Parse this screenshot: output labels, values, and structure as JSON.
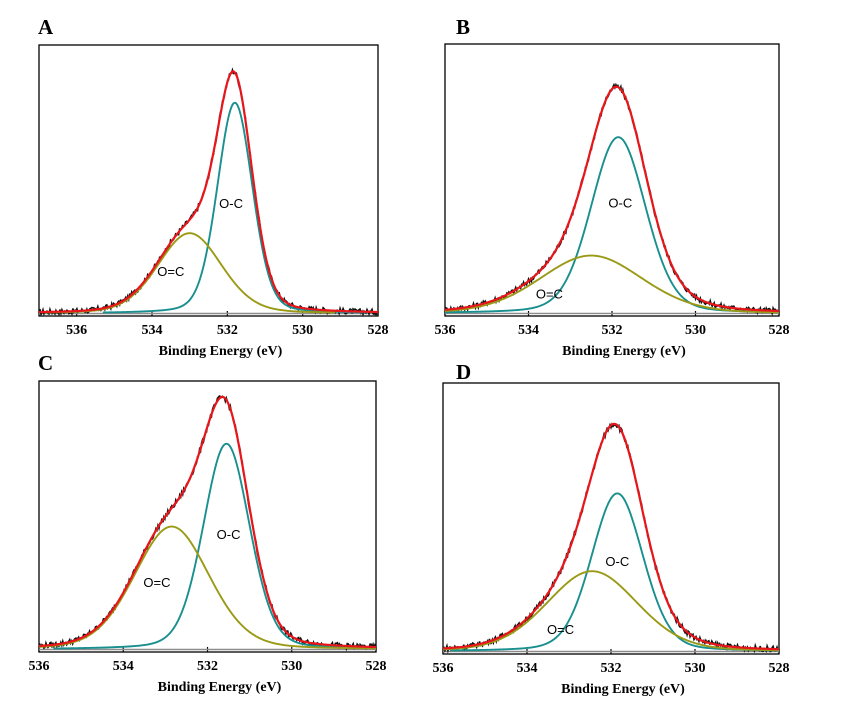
{
  "colors": {
    "raw": "#111111",
    "envelope": "#e8161b",
    "o_c": "#1a8f8f",
    "o_eq_c": "#9a9a16",
    "baseline": "#8c8c8c"
  },
  "chart_data": [
    {
      "panel": "A",
      "type": "line",
      "xlabel": "Binding Energy (eV)",
      "ylabel": "",
      "xlim": [
        537,
        528
      ],
      "x_reversed": true,
      "x_ticks": [
        536,
        534,
        532,
        530,
        528
      ],
      "y_axis_visible": false,
      "ylim": [
        0,
        1.08
      ],
      "baseline_level": 0.01,
      "components": [
        {
          "label": "O-C",
          "center": 531.8,
          "fwhm": 1.1,
          "height": 0.84,
          "color_key": "o_c"
        },
        {
          "label": "O=C",
          "center": 533.0,
          "fwhm": 2.0,
          "height": 0.32,
          "color_key": "o_eq_c"
        }
      ],
      "annotations": [
        {
          "text": "O-C",
          "x": 531.9,
          "y": 0.43
        },
        {
          "text": "O=C",
          "x": 533.5,
          "y": 0.16
        }
      ]
    },
    {
      "panel": "B",
      "type": "line",
      "xlabel": "Binding Energy (eV)",
      "ylabel": "",
      "xlim": [
        536,
        528
      ],
      "x_reversed": true,
      "x_ticks": [
        536,
        534,
        532,
        530,
        528
      ],
      "y_axis_visible": false,
      "ylim": [
        0,
        1.08
      ],
      "baseline_level": 0.01,
      "components": [
        {
          "label": "O-C",
          "center": 531.85,
          "fwhm": 1.55,
          "height": 0.7,
          "color_key": "o_c"
        },
        {
          "label": "O=C",
          "center": 532.5,
          "fwhm": 2.9,
          "height": 0.23,
          "color_key": "o_eq_c"
        }
      ],
      "annotations": [
        {
          "text": "O-C",
          "x": 531.8,
          "y": 0.43
        },
        {
          "text": "O=C",
          "x": 533.5,
          "y": 0.07
        }
      ]
    },
    {
      "panel": "C",
      "type": "line",
      "xlabel": "Binding Energy (eV)",
      "ylabel": "",
      "xlim": [
        536,
        528
      ],
      "x_reversed": true,
      "x_ticks": [
        536,
        534,
        532,
        530,
        528
      ],
      "y_axis_visible": false,
      "ylim": [
        0,
        1.08
      ],
      "baseline_level": 0.01,
      "components": [
        {
          "label": "O-C",
          "center": 531.55,
          "fwhm": 1.3,
          "height": 0.82,
          "color_key": "o_c"
        },
        {
          "label": "O=C",
          "center": 532.85,
          "fwhm": 2.1,
          "height": 0.49,
          "color_key": "o_eq_c"
        }
      ],
      "annotations": [
        {
          "text": "O-C",
          "x": 531.5,
          "y": 0.45
        },
        {
          "text": "O=C",
          "x": 533.2,
          "y": 0.26
        }
      ]
    },
    {
      "panel": "D",
      "type": "line",
      "xlabel": "Binding Energy (eV)",
      "ylabel": "",
      "xlim": [
        536,
        528
      ],
      "x_reversed": true,
      "x_ticks": [
        536,
        534,
        532,
        530,
        528
      ],
      "y_axis_visible": false,
      "ylim": [
        0,
        1.08
      ],
      "baseline_level": 0.01,
      "components": [
        {
          "label": "O-C",
          "center": 531.85,
          "fwhm": 1.45,
          "height": 0.63,
          "color_key": "o_c"
        },
        {
          "label": "O=C",
          "center": 532.45,
          "fwhm": 2.55,
          "height": 0.32,
          "color_key": "o_eq_c"
        }
      ],
      "annotations": [
        {
          "text": "O-C",
          "x": 531.85,
          "y": 0.35
        },
        {
          "text": "O=C",
          "x": 533.2,
          "y": 0.08
        }
      ]
    }
  ]
}
